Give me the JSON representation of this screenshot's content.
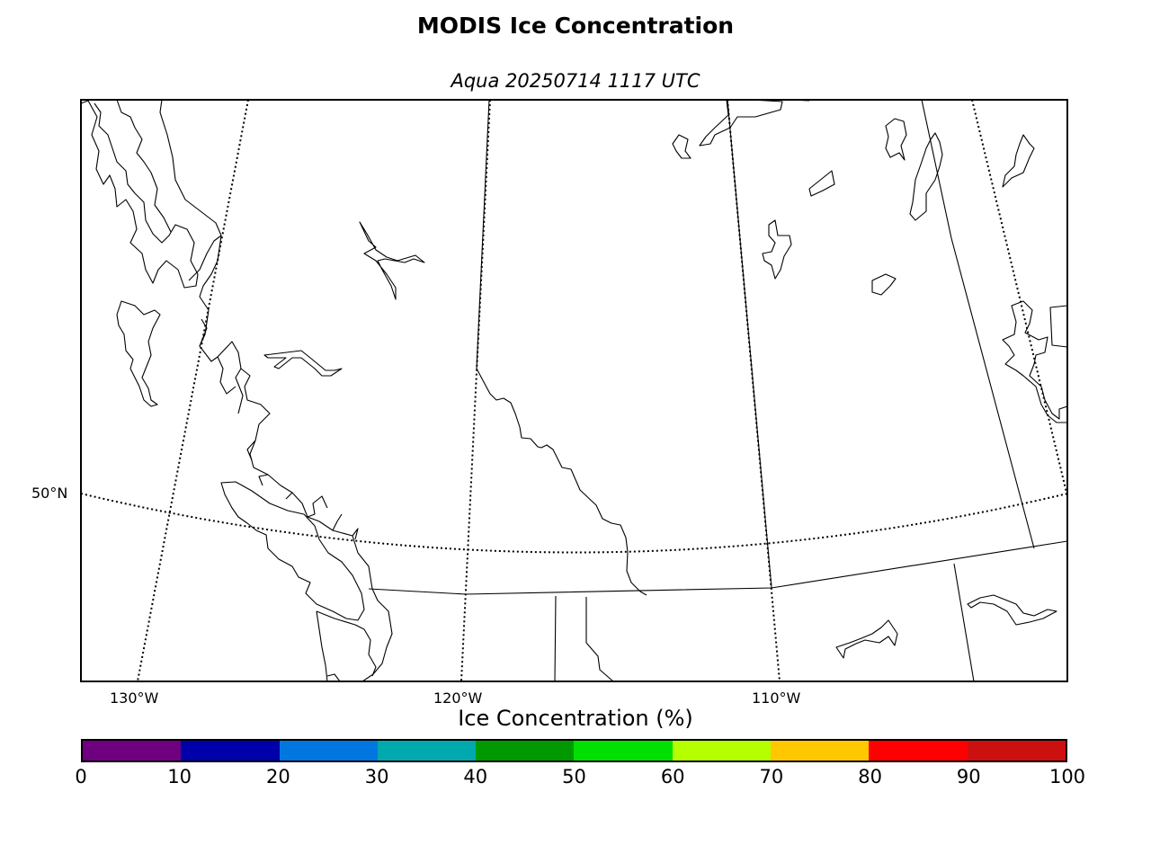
{
  "title": "MODIS Ice Concentration",
  "subtitle": "Aqua 20250714 1117 UTC",
  "map": {
    "graticule": {
      "lat_labels": [
        "50°N"
      ],
      "lon_labels": [
        "130°W",
        "120°W",
        "110°W"
      ]
    },
    "line_color": "#000000",
    "background": "#ffffff"
  },
  "colorbar": {
    "label": "Ice Concentration (%)",
    "ticks": [
      "0",
      "10",
      "20",
      "30",
      "40",
      "50",
      "60",
      "70",
      "80",
      "90",
      "100"
    ],
    "colors": [
      "#6f007f",
      "#0000aa",
      "#0077e0",
      "#00a9ad",
      "#009a00",
      "#00e000",
      "#b5ff00",
      "#ffc800",
      "#ff0000",
      "#cc1010"
    ]
  }
}
